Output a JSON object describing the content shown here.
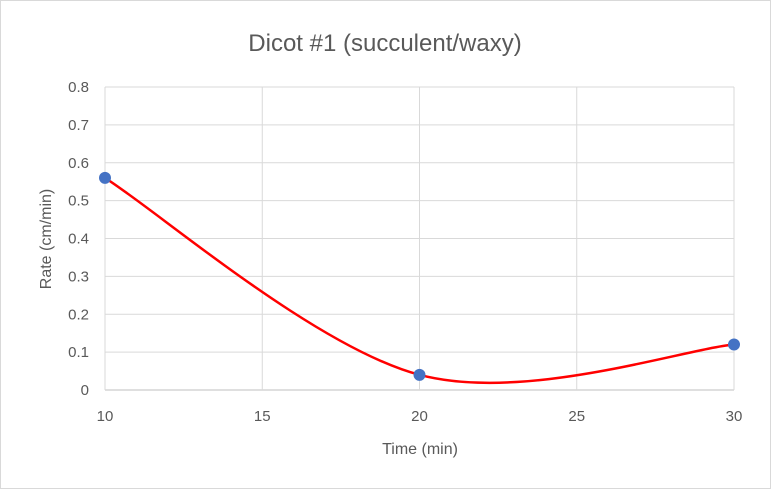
{
  "chart_data": {
    "type": "scatter",
    "title": "Dicot #1 (succulent/waxy)",
    "xlabel": "Time (min)",
    "ylabel": "Rate (cm/min)",
    "xlim": [
      10,
      30
    ],
    "ylim": [
      0,
      0.8
    ],
    "x_ticks": [
      "10",
      "15",
      "20",
      "25",
      "30"
    ],
    "y_ticks": [
      "0",
      "0.1",
      "0.2",
      "0.3",
      "0.4",
      "0.5",
      "0.6",
      "0.7",
      "0.8"
    ],
    "grid": true,
    "legend": "none",
    "smoothed_line": true,
    "line_color": "#ff0000",
    "marker_color": "#4472c4",
    "series": [
      {
        "x": [
          10,
          20,
          30
        ],
        "y": [
          0.56,
          0.04,
          0.12
        ]
      }
    ]
  }
}
